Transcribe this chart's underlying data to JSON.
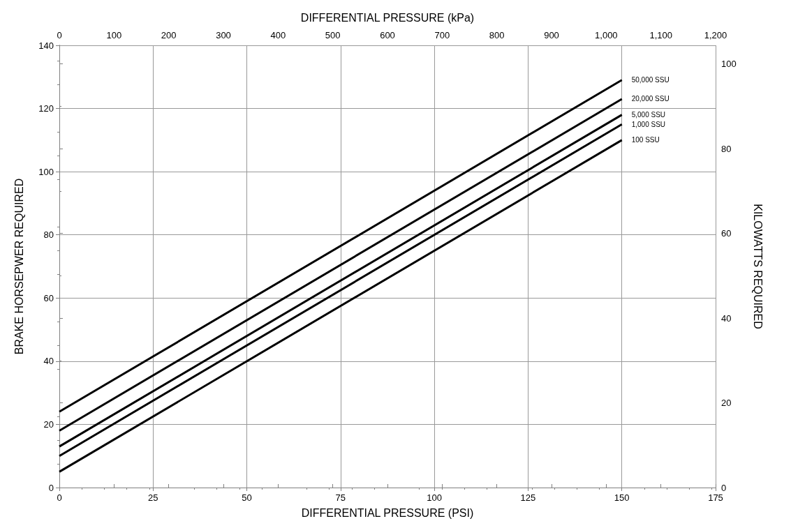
{
  "chart_data": {
    "type": "line",
    "xlabel": "DIFFERENTIAL PRESSURE (PSI)",
    "x2label": "DIFFERENTIAL PRESSURE (kPa)",
    "ylabel": "BRAKE HORSEPWER REQUIRED",
    "y2label": "KILOWATTS REQUIRED",
    "xlim": [
      0,
      175
    ],
    "xticks": [
      0,
      25,
      50,
      75,
      100,
      125,
      150,
      175
    ],
    "x2lim": [
      0,
      1200
    ],
    "x2ticks": [
      0,
      100,
      200,
      300,
      400,
      500,
      600,
      700,
      800,
      900,
      {
        "value": 1000,
        "label": "1,000"
      },
      {
        "value": 1100,
        "label": "1,100"
      },
      {
        "value": 1200,
        "label": "1,200"
      }
    ],
    "ylim": [
      0,
      140
    ],
    "yticks": [
      0,
      20,
      40,
      60,
      80,
      100,
      120,
      140
    ],
    "y2lim": [
      0,
      104.4
    ],
    "y2ticks": [
      0,
      20,
      40,
      60,
      80,
      100
    ],
    "grid": true,
    "legend": false,
    "marker": "none",
    "line_style": "solid",
    "x": [
      0,
      150
    ],
    "series": [
      {
        "name": "50,000 SSU",
        "color": "#000000",
        "values": [
          24,
          129
        ]
      },
      {
        "name": "20,000 SSU",
        "color": "#000000",
        "values": [
          18,
          123
        ]
      },
      {
        "name": "5,000 SSU",
        "color": "#000000",
        "values": [
          13,
          118
        ]
      },
      {
        "name": "1,000 SSU",
        "color": "#000000",
        "values": [
          10,
          115
        ]
      },
      {
        "name": "100 SSU",
        "color": "#000000",
        "values": [
          5,
          110
        ]
      }
    ]
  }
}
